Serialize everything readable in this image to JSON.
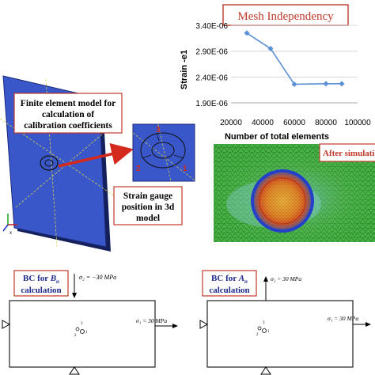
{
  "fem_label": {
    "lines": [
      "Finite element model for",
      "calculation of",
      "calibration coefficients"
    ],
    "border_color": "#c0392b"
  },
  "gauge_label": {
    "lines": [
      "Strain gauge",
      "position in 3d",
      "model"
    ],
    "border_color": "#c0392b"
  },
  "gauge_numbers": [
    "1",
    "2",
    "3"
  ],
  "after_label": "After simulations",
  "chart_data": {
    "type": "line",
    "title": "Mesh Independency",
    "xlabel": "Number of total elements",
    "ylabel": "Strain -e1",
    "x": [
      30000,
      45000,
      60000,
      80000,
      90000
    ],
    "y": [
      3.25e-06,
      2.95e-06,
      2.26e-06,
      2.27e-06,
      2.27e-06
    ],
    "xlim": [
      20000,
      100000
    ],
    "ylim": [
      1.9e-06,
      3.4e-06
    ],
    "xticks": [
      "20000",
      "40000",
      "60000",
      "80000",
      "100000"
    ],
    "yticks": [
      "1.90E-06",
      "2.40E-06",
      "2.90E-06",
      "3.40E-06"
    ],
    "line_color": "#5b8fd6",
    "grid": true
  },
  "bc_b": {
    "label_pre": "BC for ",
    "label_sym": "B",
    "label_sub": "n",
    "label_line2": "calculation",
    "sigma2": "σ₂ = −30 MPa",
    "sigma1": "σ₁ = 30 MPa"
  },
  "bc_a": {
    "label_pre": "BC for ",
    "label_sym": "A",
    "label_sub": "n",
    "label_line2": "calculation",
    "sigma2": "σ₂ = 30 MPa",
    "sigma1": "σ₁ = 30 MPa"
  },
  "colors": {
    "plate_blue": "#3a57c9",
    "arrow_red": "#d42a1e",
    "mesh_green": "#3fae3b",
    "label_red_border": "#c0392b"
  }
}
